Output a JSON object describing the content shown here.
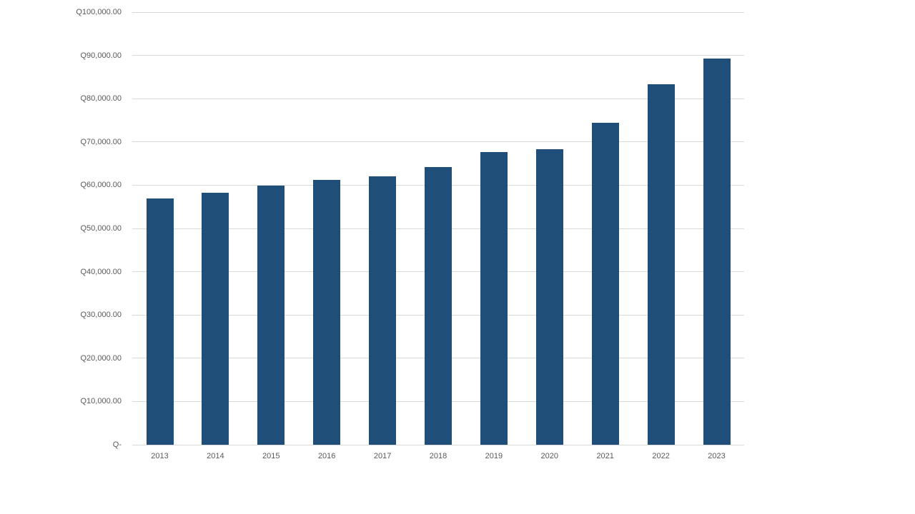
{
  "page": {
    "background_color": "#ffffff"
  },
  "chart_data": {
    "type": "bar",
    "title": "",
    "xlabel": "",
    "ylabel": "",
    "categories": [
      "2013",
      "2014",
      "2015",
      "2016",
      "2017",
      "2018",
      "2019",
      "2020",
      "2021",
      "2022",
      "2023"
    ],
    "values": [
      56900,
      58200,
      59900,
      61300,
      62100,
      64200,
      67600,
      68300,
      74500,
      83300,
      89300
    ],
    "ylim": [
      0,
      100000
    ],
    "y_tick_interval": 10000,
    "y_tick_labels_bottom_up": [
      "Q-",
      "Q10,000.00",
      "Q20,000.00",
      "Q30,000.00",
      "Q40,000.00",
      "Q50,000.00",
      "Q60,000.00",
      "Q70,000.00",
      "Q80,000.00",
      "Q90,000.00",
      "Q100,000.00"
    ],
    "currency_prefix": "Q",
    "grid": true,
    "legend": false,
    "legend_position": "none",
    "colors": {
      "bar": "#1F4E79",
      "gridline": "#D9D9D9",
      "axis_label": "#595959"
    }
  }
}
